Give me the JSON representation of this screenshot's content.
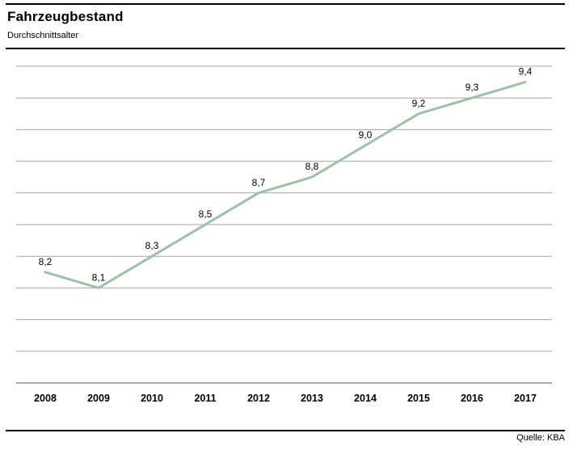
{
  "header": {
    "title": "Fahrzeugbestand",
    "subtitle": "Durchschnittsalter"
  },
  "footer": {
    "source": "Quelle: KBA"
  },
  "chart_data": {
    "type": "line",
    "title": "Fahrzeugbestand",
    "subtitle": "Durchschnittsalter",
    "categories": [
      "2008",
      "2009",
      "2010",
      "2011",
      "2012",
      "2013",
      "2014",
      "2015",
      "2016",
      "2017"
    ],
    "values": [
      8.2,
      8.1,
      8.3,
      8.5,
      8.7,
      8.8,
      9.0,
      9.2,
      9.3,
      9.4
    ],
    "point_labels": [
      "8,2",
      "8,1",
      "8,3",
      "8,5",
      "8,7",
      "8,8",
      "9,0",
      "9,2",
      "9,3",
      "9,4"
    ],
    "series_name": "Durchschnittsalter",
    "xlabel": "",
    "ylabel": "",
    "ylim": [
      7.5,
      9.5
    ],
    "grid_step": 0.2,
    "grid": true,
    "legend": false,
    "source": "Quelle: KBA",
    "colors": {
      "line": "#9ac3a2",
      "grid": "#a3a3a3",
      "axis": "#8c8c8c",
      "label": "#000000",
      "tick": "#000000"
    }
  }
}
